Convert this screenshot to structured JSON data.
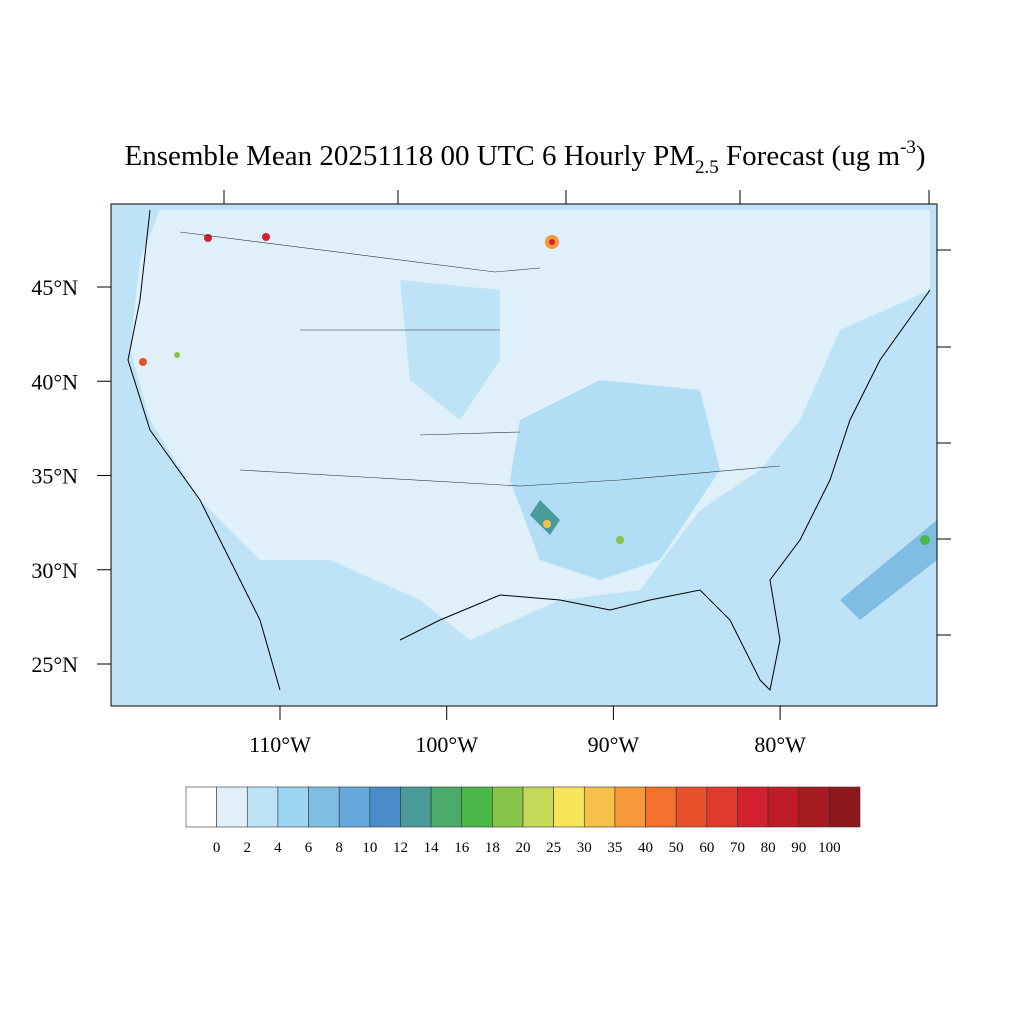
{
  "map": {
    "title": {
      "lead": "Ensemble Mean 20251118 00 UTC 6 Hourly PM",
      "sub": "2.5",
      "mid": " Forecast (ug m",
      "sup": "-3",
      "tail": ")"
    },
    "lat_ticks": [
      {
        "value": 45,
        "label": "45°N"
      },
      {
        "value": 40,
        "label": "40°N"
      },
      {
        "value": 35,
        "label": "35°N"
      },
      {
        "value": 30,
        "label": "30°N"
      },
      {
        "value": 25,
        "label": "25°N"
      }
    ],
    "lon_ticks": [
      {
        "value": -110,
        "label": "110°W"
      },
      {
        "value": -100,
        "label": "100°W"
      },
      {
        "value": -90,
        "label": "90°W"
      },
      {
        "value": -80,
        "label": "80°W"
      }
    ],
    "colorbar": {
      "levels": [
        0,
        2,
        4,
        6,
        8,
        10,
        12,
        14,
        16,
        18,
        20,
        25,
        30,
        35,
        40,
        50,
        60,
        70,
        80,
        90,
        100
      ],
      "colors": [
        "#ffffff",
        "#dff0fa",
        "#bfe3f6",
        "#9dd6f2",
        "#80bde3",
        "#65a8db",
        "#4a8cc8",
        "#4a9a9a",
        "#4aaa6a",
        "#4ab848",
        "#88c44a",
        "#c4d85a",
        "#f7e65a",
        "#f7c048",
        "#f7983a",
        "#f4702c",
        "#e8502c",
        "#e03a2c",
        "#d42030",
        "#c01c28",
        "#a81a22",
        "#8c1a1c"
      ]
    }
  }
}
